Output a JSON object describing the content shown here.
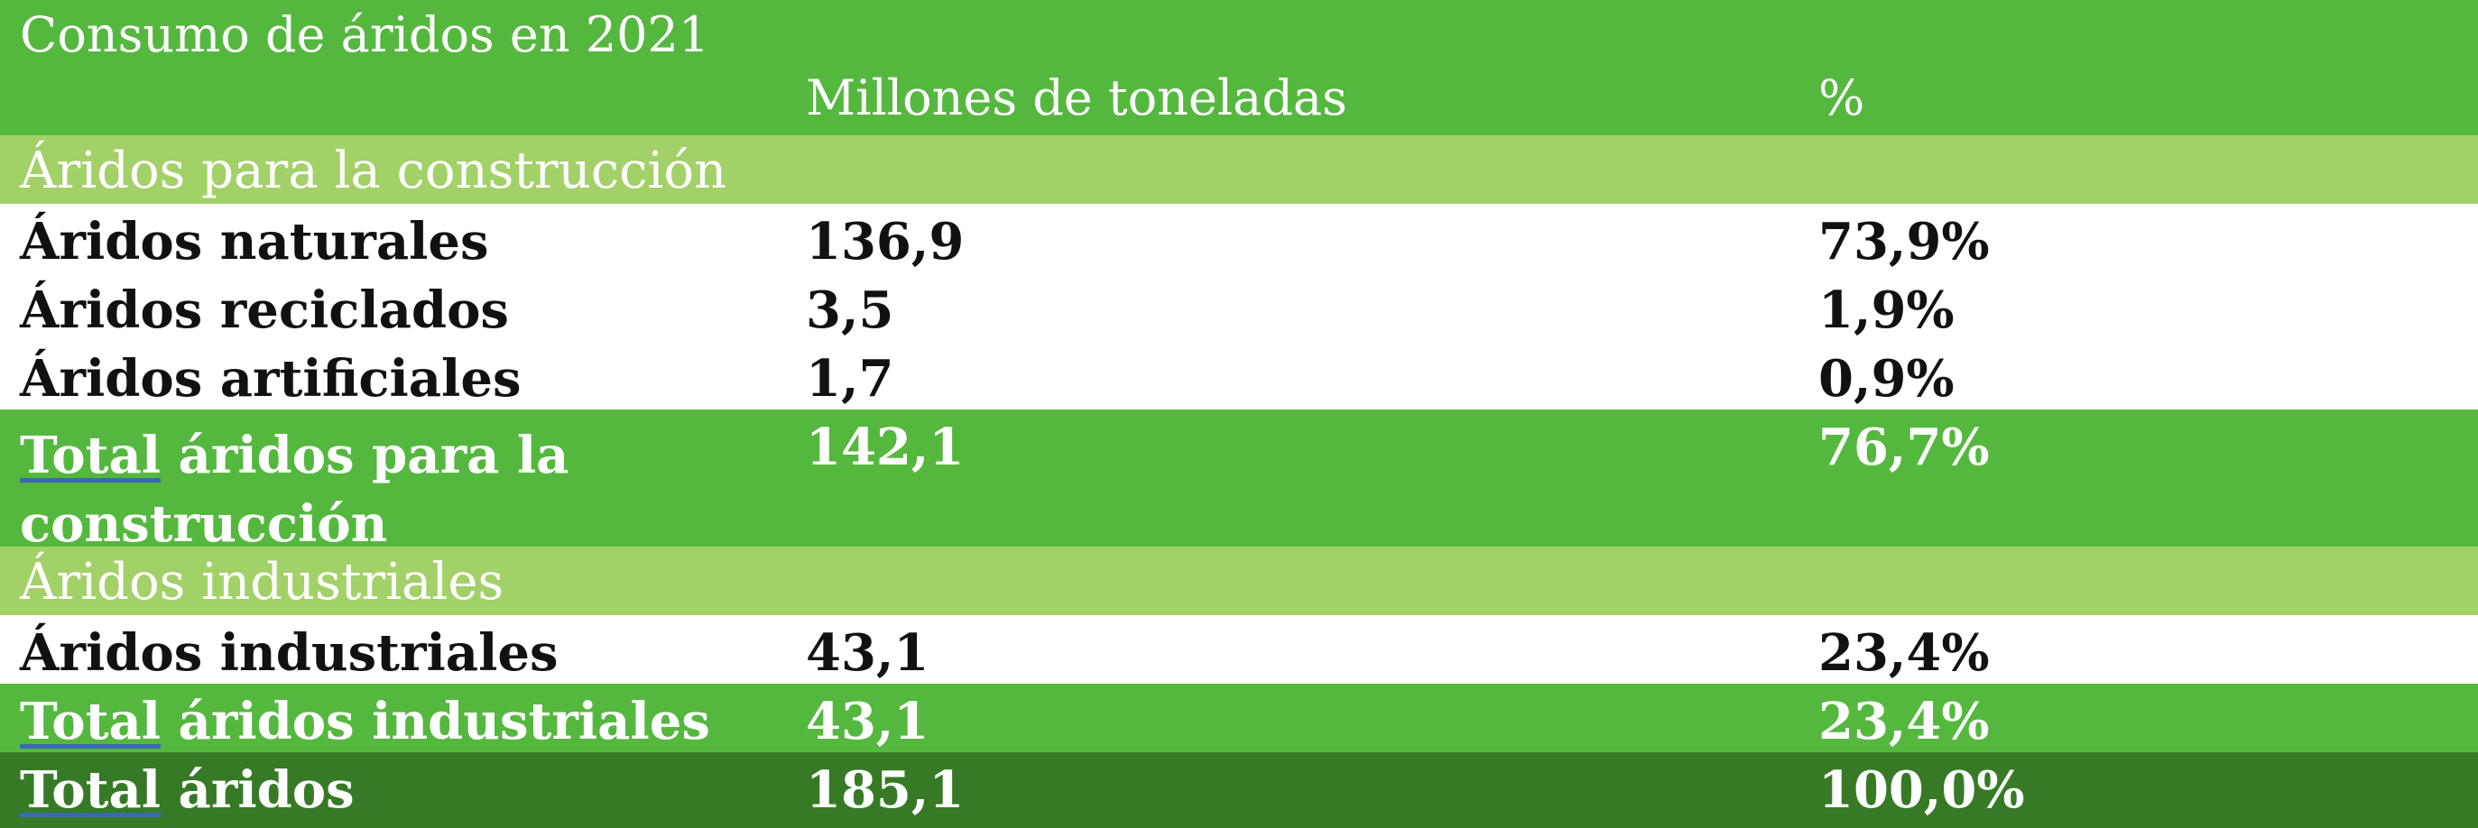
{
  "title": "Consumo de áridos en 2021",
  "headers": {
    "col2": "Millones de toneladas",
    "col3": "%"
  },
  "section_construction": "Áridos para la construcción",
  "rows_construction": [
    {
      "label": "Áridos naturales",
      "value": "136,9",
      "pct": "73,9%"
    },
    {
      "label": "Áridos reciclados",
      "value": "3,5",
      "pct": "1,9%"
    },
    {
      "label": "Áridos artificiales",
      "value": "1,7",
      "pct": "0,9%"
    }
  ],
  "total_construction": {
    "label_u": "Total",
    "label_rest": " áridos para la construcción",
    "value": "142,1",
    "pct": "76,7%"
  },
  "section_industrial": "Áridos industriales",
  "rows_industrial": [
    {
      "label": "Áridos industriales",
      "value": "43,1",
      "pct": "23,4%"
    }
  ],
  "total_industrial": {
    "label_u": "Total",
    "label_rest": " áridos industriales",
    "value": "43,1",
    "pct": "23,4%"
  },
  "total_all": {
    "label_u": "Total",
    "label_rest": " áridos",
    "value": "185,1",
    "pct": "100,0%"
  },
  "colors": {
    "header_green": "#55b83e",
    "section_green": "#a2d168",
    "grand_total_green": "#367a25"
  }
}
